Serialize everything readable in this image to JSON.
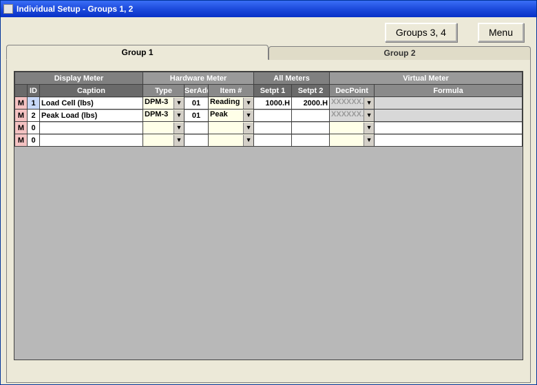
{
  "window": {
    "title": "Individual Setup - Groups 1, 2"
  },
  "toolbar": {
    "groups34": "Groups 3, 4",
    "menu": "Menu"
  },
  "tabs": {
    "group1": "Group 1",
    "group2": "Group 2",
    "activeIndex": 0
  },
  "grid": {
    "groupHeaders": {
      "displayMeter": "Display Meter",
      "hardwareMeter": "Hardware Meter",
      "allMeters": "All Meters",
      "virtualMeter": "Virtual Meter"
    },
    "columns": {
      "m": "",
      "id": "ID",
      "caption": "Caption",
      "type": "Type",
      "serAddr": "SerAddr",
      "itemNum": "Item #",
      "setpt1": "Setpt 1",
      "setpt2": "Setpt 2",
      "decPoint": "DecPoint",
      "formula": "Formula"
    },
    "mLabel": "M",
    "decPlaceholder": "XXXXXX.",
    "rows": [
      {
        "id": "1",
        "idSelected": true,
        "caption": "Load Cell (lbs)",
        "type": "DPM-3",
        "serAddr": "01",
        "item": "Reading",
        "setpt1": "1000.H",
        "setpt2": "2000.H",
        "decPoint": "XXXXXX.",
        "decDisabled": true,
        "formula": ""
      },
      {
        "id": "2",
        "idSelected": false,
        "caption": "Peak Load (lbs)",
        "type": "DPM-3",
        "serAddr": "01",
        "item": "Peak",
        "setpt1": "",
        "setpt2": "",
        "decPoint": "XXXXXX.",
        "decDisabled": true,
        "formula": ""
      },
      {
        "id": "0",
        "idSelected": false,
        "caption": "",
        "type": "",
        "serAddr": "",
        "item": "",
        "setpt1": "",
        "setpt2": "",
        "decPoint": "",
        "decDisabled": false,
        "formula": ""
      },
      {
        "id": "0",
        "idSelected": false,
        "caption": "",
        "type": "",
        "serAddr": "",
        "item": "",
        "setpt1": "",
        "setpt2": "",
        "decPoint": "",
        "decDisabled": false,
        "formula": ""
      }
    ]
  },
  "colors": {
    "titlebarGradientTop": "#3a6ef7",
    "titlebarGradientBottom": "#0831c7",
    "dialogBg": "#ece9d8",
    "gridBg": "#b8b8b8",
    "headerDark": "#6a6a6a",
    "headerMid": "#808080",
    "headerLight": "#9a9a9a",
    "mCellBg": "#f4c2c2",
    "comboBg": "#ffffe8",
    "disabledBg": "#d8d8d8",
    "disabledFg": "#9a9a9a",
    "idSelectedBg": "#c8d8f8",
    "borderDark": "#404040"
  }
}
